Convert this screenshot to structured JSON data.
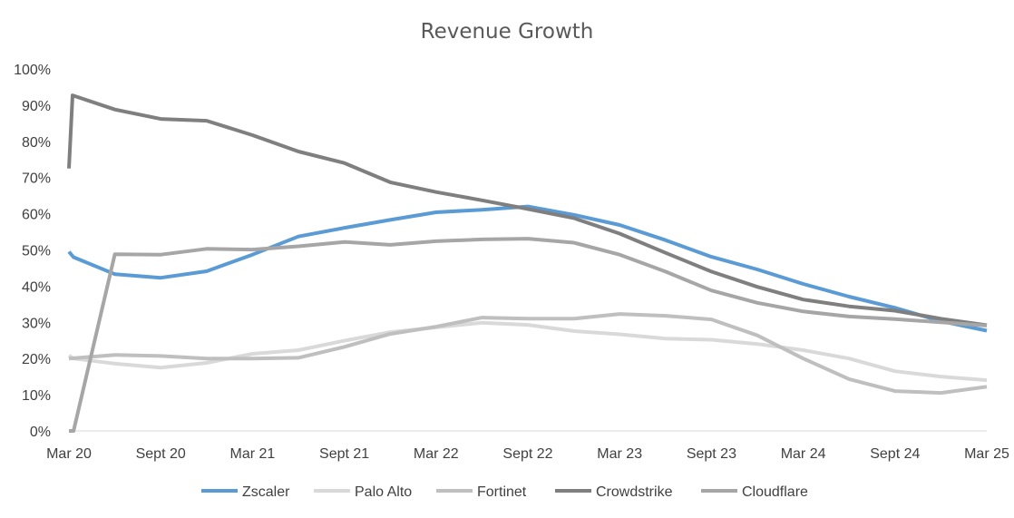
{
  "chart_data": {
    "type": "line",
    "title": "Revenue Growth",
    "xlabel": "",
    "ylabel": "",
    "ylim": [
      0,
      1
    ],
    "y_ticks": [
      "0%",
      "10%",
      "20%",
      "30%",
      "40%",
      "50%",
      "60%",
      "70%",
      "80%",
      "90%",
      "100%"
    ],
    "x_ticks": [
      "Mar 20",
      "Sept 20",
      "Mar 21",
      "Sept 21",
      "Mar 22",
      "Sept 22",
      "Mar 23",
      "Sept 23",
      "Mar 24",
      "Sept 24",
      "Mar 25"
    ],
    "grid": false,
    "legend_position": "bottom",
    "series": [
      {
        "name": "Zscaler",
        "color": "#5B9BD5",
        "points": [
          [
            0,
            0.495
          ],
          [
            0.1,
            0.48
          ],
          [
            1,
            0.433
          ],
          [
            2,
            0.423
          ],
          [
            3,
            0.441
          ],
          [
            4,
            0.487
          ],
          [
            5,
            0.537
          ],
          [
            6,
            0.561
          ],
          [
            7,
            0.583
          ],
          [
            8,
            0.604
          ],
          [
            9,
            0.611
          ],
          [
            10,
            0.62
          ],
          [
            11,
            0.597
          ],
          [
            12,
            0.569
          ],
          [
            13,
            0.527
          ],
          [
            14,
            0.481
          ],
          [
            15,
            0.446
          ],
          [
            16,
            0.406
          ],
          [
            17,
            0.371
          ],
          [
            18,
            0.34
          ],
          [
            19,
            0.303
          ],
          [
            20,
            0.277
          ]
        ]
      },
      {
        "name": "Palo Alto",
        "color": "#D9D9D9",
        "points": [
          [
            0,
            0.208
          ],
          [
            0.1,
            0.2
          ],
          [
            1,
            0.186
          ],
          [
            2,
            0.175
          ],
          [
            3,
            0.188
          ],
          [
            4,
            0.213
          ],
          [
            5,
            0.223
          ],
          [
            6,
            0.249
          ],
          [
            7,
            0.273
          ],
          [
            8,
            0.286
          ],
          [
            9,
            0.299
          ],
          [
            10,
            0.293
          ],
          [
            11,
            0.276
          ],
          [
            12,
            0.267
          ],
          [
            13,
            0.255
          ],
          [
            14,
            0.252
          ],
          [
            15,
            0.24
          ],
          [
            16,
            0.223
          ],
          [
            17,
            0.2
          ],
          [
            18,
            0.165
          ],
          [
            19,
            0.15
          ],
          [
            20,
            0.14
          ]
        ]
      },
      {
        "name": "Fortinet",
        "color": "#BFBFBF",
        "points": [
          [
            0,
            0.2
          ],
          [
            1,
            0.21
          ],
          [
            2,
            0.207
          ],
          [
            3,
            0.2
          ],
          [
            4,
            0.2
          ],
          [
            5,
            0.202
          ],
          [
            6,
            0.232
          ],
          [
            7,
            0.268
          ],
          [
            8,
            0.288
          ],
          [
            9,
            0.313
          ],
          [
            10,
            0.31
          ],
          [
            11,
            0.31
          ],
          [
            12,
            0.323
          ],
          [
            13,
            0.318
          ],
          [
            14,
            0.308
          ],
          [
            15,
            0.264
          ],
          [
            16,
            0.2
          ],
          [
            17,
            0.143
          ],
          [
            18,
            0.11
          ],
          [
            19,
            0.105
          ],
          [
            20,
            0.122
          ]
        ]
      },
      {
        "name": "Crowdstrike",
        "color": "#7F7F7F",
        "points": [
          [
            0,
            0.725
          ],
          [
            0.08,
            0.927
          ],
          [
            1,
            0.888
          ],
          [
            2,
            0.862
          ],
          [
            3,
            0.857
          ],
          [
            4,
            0.817
          ],
          [
            5,
            0.772
          ],
          [
            6,
            0.74
          ],
          [
            7,
            0.687
          ],
          [
            8,
            0.66
          ],
          [
            9,
            0.637
          ],
          [
            10,
            0.613
          ],
          [
            11,
            0.588
          ],
          [
            12,
            0.545
          ],
          [
            13,
            0.492
          ],
          [
            14,
            0.44
          ],
          [
            15,
            0.398
          ],
          [
            16,
            0.363
          ],
          [
            17,
            0.344
          ],
          [
            18,
            0.332
          ],
          [
            19,
            0.31
          ],
          [
            20,
            0.292
          ]
        ]
      },
      {
        "name": "Cloudflare",
        "color": "#A6A6A6",
        "points": [
          [
            0,
            0.0
          ],
          [
            0.1,
            0.0
          ],
          [
            1,
            0.488
          ],
          [
            2,
            0.487
          ],
          [
            3,
            0.503
          ],
          [
            4,
            0.501
          ],
          [
            5,
            0.51
          ],
          [
            6,
            0.522
          ],
          [
            7,
            0.514
          ],
          [
            8,
            0.524
          ],
          [
            9,
            0.529
          ],
          [
            10,
            0.531
          ],
          [
            11,
            0.52
          ],
          [
            12,
            0.487
          ],
          [
            13,
            0.44
          ],
          [
            14,
            0.388
          ],
          [
            15,
            0.354
          ],
          [
            16,
            0.33
          ],
          [
            17,
            0.316
          ],
          [
            18,
            0.309
          ],
          [
            19,
            0.3
          ],
          [
            20,
            0.291
          ]
        ]
      }
    ]
  }
}
